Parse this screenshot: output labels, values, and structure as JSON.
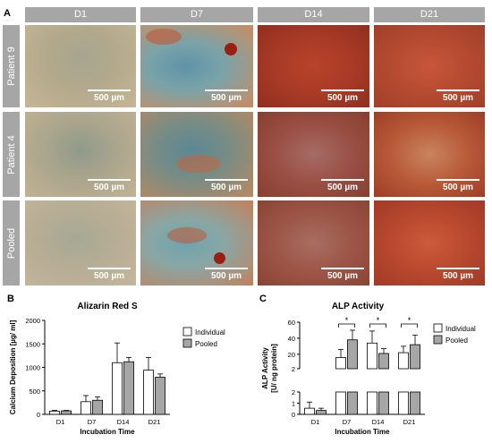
{
  "panel_a": {
    "label": "A",
    "columns": [
      "D1",
      "D7",
      "D14",
      "D21"
    ],
    "rows": [
      "Patient 9",
      "Patient 4",
      "Pooled"
    ],
    "scale_bar": "500 µm"
  },
  "chart_data": [
    {
      "panel": "B",
      "type": "bar",
      "title": "Alizarin Red S",
      "xlabel": "Incubation Time",
      "ylabel": "Calcium Deposition [µg/ ml]",
      "categories": [
        "D1",
        "D7",
        "D14",
        "D21"
      ],
      "ylim": [
        0,
        2000
      ],
      "yticks": [
        "0",
        "500",
        "1000",
        "1500",
        "2000"
      ],
      "legend_position": "top-right",
      "series": [
        {
          "name": "Individual",
          "color": "#ffffff",
          "values": [
            70,
            270,
            1100,
            940
          ],
          "errors": [
            15,
            130,
            420,
            270
          ]
        },
        {
          "name": "Pooled",
          "color": "#a6a6a6",
          "values": [
            75,
            300,
            1120,
            790
          ],
          "errors": [
            10,
            70,
            90,
            70
          ]
        }
      ]
    },
    {
      "panel": "C",
      "type": "bar",
      "title": "ALP Activity",
      "xlabel": "Incubation Time",
      "ylabel_lines": [
        "ALP Activity",
        "[U/ ng protein]"
      ],
      "categories": [
        "D1",
        "D7",
        "D14",
        "D21"
      ],
      "broken_axis": true,
      "ylim_lower": [
        0,
        2
      ],
      "ylim_upper": [
        2,
        60
      ],
      "yticks_lower": [
        "0",
        "1",
        "2"
      ],
      "yticks_upper": [
        "2",
        "20",
        "40",
        "60"
      ],
      "legend_position": "top-right",
      "significance": [
        "*",
        "*",
        "*"
      ],
      "series": [
        {
          "name": "Individual",
          "color": "#ffffff",
          "values": [
            0.55,
            16,
            34,
            22
          ],
          "errors": [
            0.55,
            10,
            15,
            8
          ]
        },
        {
          "name": "Pooled",
          "color": "#a6a6a6",
          "values": [
            0.35,
            38,
            21,
            32
          ],
          "errors": [
            0.2,
            12,
            6,
            12
          ]
        }
      ]
    }
  ]
}
